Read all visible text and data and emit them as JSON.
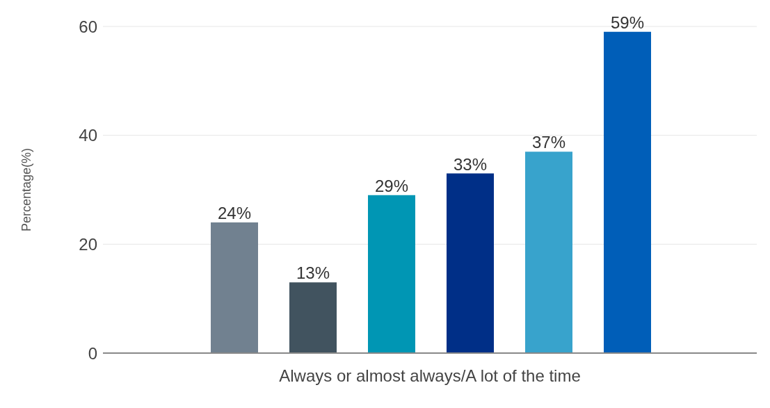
{
  "chart_data": {
    "type": "bar",
    "ylabel": "Percentage(%)",
    "categories": [
      "Always or almost always/A lot of the time"
    ],
    "series": [
      {
        "color": "#718190",
        "values": [
          24
        ],
        "value_labels": [
          "24%"
        ]
      },
      {
        "color": "#41535f",
        "values": [
          13
        ],
        "value_labels": [
          "13%"
        ]
      },
      {
        "color": "#0096b4",
        "values": [
          29
        ],
        "value_labels": [
          "29%"
        ]
      },
      {
        "color": "#002f87",
        "values": [
          33
        ],
        "value_labels": [
          "33%"
        ]
      },
      {
        "color": "#38a3cc",
        "values": [
          37
        ],
        "value_labels": [
          "37%"
        ]
      },
      {
        "color": "#005eb8",
        "values": [
          59
        ],
        "value_labels": [
          "59%"
        ]
      }
    ],
    "ylim": [
      0,
      60
    ],
    "yticks": [
      0,
      20,
      40,
      60
    ],
    "grid": "y",
    "legend": false
  }
}
